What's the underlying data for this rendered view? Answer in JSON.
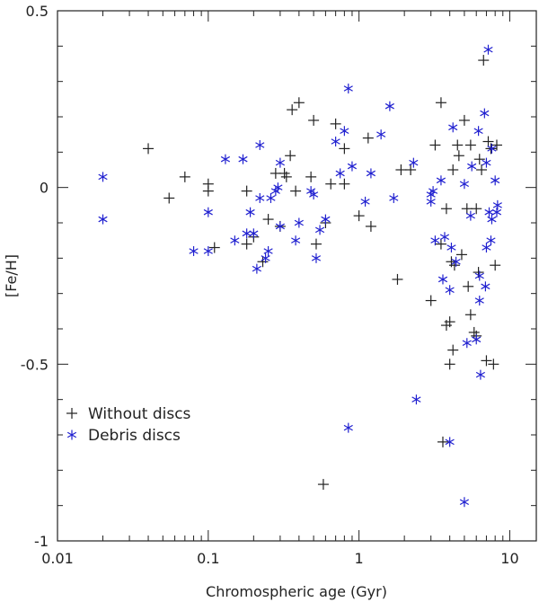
{
  "chart_data": {
    "type": "scatter",
    "title": "",
    "xlabel": "Chromospheric age (Gyr)",
    "ylabel": "[Fe/H]",
    "xscale": "log",
    "xlim": [
      0.01,
      15
    ],
    "ylim": [
      -1.0,
      0.5
    ],
    "grid": false,
    "legend_position": "lower-left",
    "x_ticks": [
      {
        "value": 0.01,
        "label": "0.01"
      },
      {
        "value": 0.1,
        "label": "0.1"
      },
      {
        "value": 1,
        "label": "1"
      },
      {
        "value": 10,
        "label": "10"
      }
    ],
    "y_ticks": [
      {
        "value": 0.5,
        "label": "0.5"
      },
      {
        "value": 0.0,
        "label": "0"
      },
      {
        "value": -0.5,
        "label": "-0.5"
      },
      {
        "value": -1.0,
        "label": "-1"
      }
    ],
    "series": [
      {
        "name": "Without discs",
        "marker": "plus",
        "color": "#222222",
        "points": [
          [
            0.04,
            0.11
          ],
          [
            0.055,
            -0.03
          ],
          [
            0.07,
            0.03
          ],
          [
            0.1,
            0.01
          ],
          [
            0.1,
            -0.01
          ],
          [
            0.11,
            -0.17
          ],
          [
            0.18,
            -0.01
          ],
          [
            0.18,
            -0.16
          ],
          [
            0.2,
            -0.14
          ],
          [
            0.23,
            -0.21
          ],
          [
            0.25,
            -0.09
          ],
          [
            0.28,
            0.04
          ],
          [
            0.3,
            -0.11
          ],
          [
            0.32,
            0.04
          ],
          [
            0.33,
            0.03
          ],
          [
            0.35,
            0.09
          ],
          [
            0.36,
            0.22
          ],
          [
            0.4,
            0.24
          ],
          [
            0.38,
            -0.01
          ],
          [
            0.48,
            0.03
          ],
          [
            0.5,
            0.19
          ],
          [
            0.52,
            -0.16
          ],
          [
            0.58,
            -0.84
          ],
          [
            0.6,
            -0.1
          ],
          [
            0.7,
            0.18
          ],
          [
            0.65,
            0.01
          ],
          [
            0.8,
            0.01
          ],
          [
            0.8,
            0.11
          ],
          [
            1.0,
            -0.08
          ],
          [
            1.15,
            0.14
          ],
          [
            1.2,
            -0.11
          ],
          [
            1.8,
            -0.26
          ],
          [
            1.9,
            0.05
          ],
          [
            2.2,
            0.05
          ],
          [
            3.0,
            -0.32
          ],
          [
            3.2,
            0.12
          ],
          [
            3.5,
            0.24
          ],
          [
            3.5,
            -0.16
          ],
          [
            3.6,
            -0.72
          ],
          [
            3.8,
            -0.06
          ],
          [
            3.8,
            -0.39
          ],
          [
            4.0,
            -0.5
          ],
          [
            4.0,
            -0.38
          ],
          [
            4.1,
            -0.21
          ],
          [
            4.2,
            -0.46
          ],
          [
            4.3,
            -0.22
          ],
          [
            4.2,
            0.05
          ],
          [
            4.5,
            0.12
          ],
          [
            4.6,
            0.09
          ],
          [
            4.8,
            -0.19
          ],
          [
            5.0,
            0.19
          ],
          [
            5.2,
            -0.06
          ],
          [
            5.3,
            -0.28
          ],
          [
            5.5,
            -0.36
          ],
          [
            5.5,
            0.12
          ],
          [
            5.8,
            -0.41
          ],
          [
            6.0,
            -0.42
          ],
          [
            6.0,
            -0.06
          ],
          [
            6.2,
            -0.24
          ],
          [
            6.3,
            0.08
          ],
          [
            6.5,
            0.05
          ],
          [
            6.7,
            0.36
          ],
          [
            7.0,
            -0.49
          ],
          [
            7.2,
            0.13
          ],
          [
            7.5,
            0.11
          ],
          [
            7.8,
            -0.5
          ],
          [
            8.0,
            -0.22
          ],
          [
            8.2,
            0.12
          ]
        ]
      },
      {
        "name": "Debris discs",
        "marker": "asterisk",
        "color": "#2020d0",
        "points": [
          [
            0.02,
            0.03
          ],
          [
            0.02,
            -0.09
          ],
          [
            0.08,
            -0.18
          ],
          [
            0.1,
            -0.07
          ],
          [
            0.1,
            -0.18
          ],
          [
            0.13,
            0.08
          ],
          [
            0.15,
            -0.15
          ],
          [
            0.17,
            0.08
          ],
          [
            0.18,
            -0.13
          ],
          [
            0.19,
            -0.07
          ],
          [
            0.2,
            -0.13
          ],
          [
            0.21,
            -0.23
          ],
          [
            0.22,
            0.12
          ],
          [
            0.22,
            -0.03
          ],
          [
            0.24,
            -0.2
          ],
          [
            0.25,
            -0.18
          ],
          [
            0.26,
            -0.03
          ],
          [
            0.28,
            -0.01
          ],
          [
            0.29,
            0.0
          ],
          [
            0.3,
            0.07
          ],
          [
            0.3,
            -0.11
          ],
          [
            0.38,
            -0.15
          ],
          [
            0.4,
            -0.1
          ],
          [
            0.48,
            -0.01
          ],
          [
            0.5,
            -0.02
          ],
          [
            0.52,
            -0.2
          ],
          [
            0.55,
            -0.12
          ],
          [
            0.6,
            -0.09
          ],
          [
            0.7,
            0.13
          ],
          [
            0.75,
            0.04
          ],
          [
            0.8,
            0.16
          ],
          [
            0.85,
            0.28
          ],
          [
            0.85,
            -0.68
          ],
          [
            0.9,
            0.06
          ],
          [
            1.1,
            -0.04
          ],
          [
            1.2,
            0.04
          ],
          [
            1.4,
            0.15
          ],
          [
            1.6,
            0.23
          ],
          [
            1.7,
            -0.03
          ],
          [
            2.3,
            0.07
          ],
          [
            2.4,
            -0.6
          ],
          [
            3.0,
            -0.02
          ],
          [
            3.1,
            -0.01
          ],
          [
            3.0,
            -0.04
          ],
          [
            3.2,
            -0.15
          ],
          [
            3.5,
            0.02
          ],
          [
            3.6,
            -0.26
          ],
          [
            3.7,
            -0.14
          ],
          [
            4.0,
            -0.29
          ],
          [
            4.0,
            -0.72
          ],
          [
            4.2,
            0.17
          ],
          [
            4.1,
            -0.17
          ],
          [
            4.4,
            -0.21
          ],
          [
            5.0,
            -0.89
          ],
          [
            5.0,
            0.01
          ],
          [
            5.2,
            -0.44
          ],
          [
            5.5,
            -0.08
          ],
          [
            5.6,
            0.06
          ],
          [
            6.0,
            -0.43
          ],
          [
            6.2,
            0.16
          ],
          [
            6.3,
            -0.25
          ],
          [
            6.4,
            -0.53
          ],
          [
            6.3,
            -0.32
          ],
          [
            6.8,
            0.21
          ],
          [
            7.0,
            0.07
          ],
          [
            7.2,
            0.39
          ],
          [
            7.0,
            -0.17
          ],
          [
            7.3,
            -0.07
          ],
          [
            7.5,
            -0.15
          ],
          [
            7.6,
            -0.09
          ],
          [
            7.6,
            0.11
          ],
          [
            8.2,
            -0.07
          ],
          [
            8.0,
            0.02
          ],
          [
            8.3,
            -0.05
          ],
          [
            6.9,
            -0.28
          ]
        ]
      }
    ]
  }
}
